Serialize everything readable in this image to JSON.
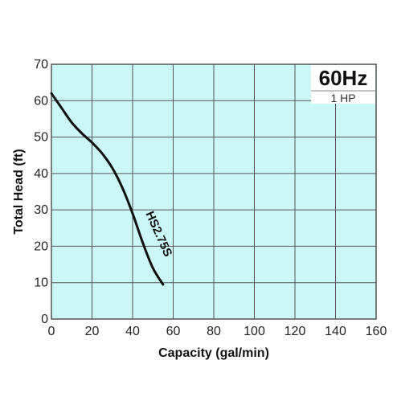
{
  "chart_data": {
    "type": "line",
    "xlabel": "Capacity (gal/min)",
    "ylabel": "Total Head (ft)",
    "xlim": [
      0,
      160
    ],
    "ylim": [
      0,
      70
    ],
    "x_ticks": [
      0,
      20,
      40,
      60,
      80,
      100,
      120,
      140,
      160
    ],
    "y_ticks": [
      0,
      10,
      20,
      30,
      40,
      50,
      60,
      70
    ],
    "grid": true,
    "background_color": "#ccf7f7",
    "grid_color": "#555555",
    "line_color": "#111111",
    "annotations": {
      "frequency": "60Hz",
      "power": "1 HP"
    },
    "series": [
      {
        "name": "HS2.75S",
        "x": [
          0,
          5,
          10,
          15,
          20,
          25,
          30,
          35,
          40,
          45,
          50,
          55
        ],
        "y": [
          62,
          58,
          54,
          51,
          48.5,
          45.5,
          41.5,
          36,
          29,
          21,
          14,
          9.5
        ]
      }
    ]
  }
}
